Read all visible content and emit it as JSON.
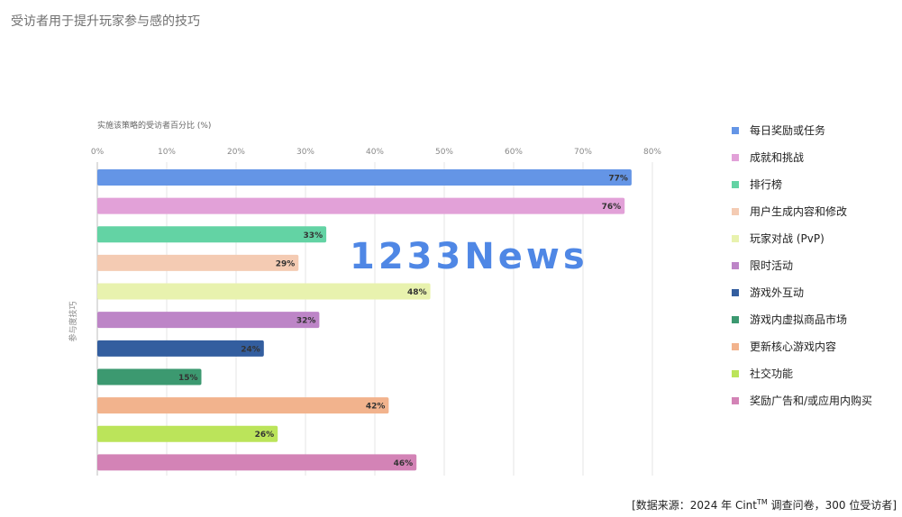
{
  "page": {
    "title": "受访者用于提升玩家参与感的技巧",
    "source_prefix": "[数据来源：2024 年 Cint",
    "source_tm": "TM",
    "source_suffix": " 调查问卷，300 位受访者]",
    "watermark": "1233News"
  },
  "chart_data": {
    "type": "bar",
    "orientation": "horizontal",
    "title": "",
    "xlabel": "实施该策略的受访者百分比 (%)",
    "ylabel": "参与度技巧",
    "xlim": [
      0,
      80
    ],
    "xticks": [
      "0%",
      "10%",
      "20%",
      "30%",
      "40%",
      "50%",
      "60%",
      "70%",
      "80%"
    ],
    "grid": "vertical",
    "legend_position": "right",
    "categories": [
      "每日奖励或任务",
      "成就和挑战",
      "排行榜",
      "用户生成内容和修改",
      "玩家对战 (PvP)",
      "限时活动",
      "游戏外互动",
      "游戏内虚拟商品市场",
      "更新核心游戏内容",
      "社交功能",
      "奖励广告和/或应用内购买"
    ],
    "values": [
      77,
      76,
      33,
      29,
      48,
      32,
      24,
      15,
      42,
      26,
      46
    ],
    "value_labels": [
      "77%",
      "76%",
      "33%",
      "29%",
      "48%",
      "32%",
      "24%",
      "15%",
      "42%",
      "26%",
      "46%"
    ],
    "colors": [
      "#6495e6",
      "#e2a1d8",
      "#63d3a4",
      "#f4cbb3",
      "#e8f2ae",
      "#bd85c7",
      "#335e9f",
      "#3c9970",
      "#f2b38d",
      "#bbe45a",
      "#d383b6"
    ]
  }
}
